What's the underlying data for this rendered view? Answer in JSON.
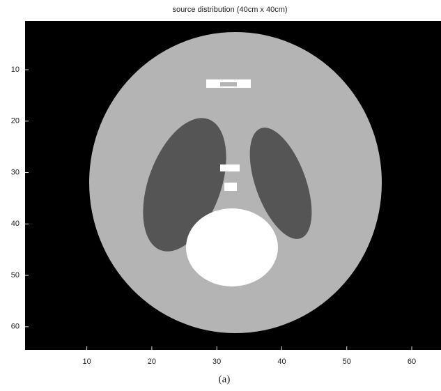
{
  "chart_data": {
    "type": "image",
    "title": "source distribution (40cm x 40cm)",
    "caption": "(a)",
    "xlim": [
      0.5,
      64.5
    ],
    "ylim": [
      0.5,
      64.5
    ],
    "y_reversed": true,
    "xticks": [
      10,
      20,
      30,
      40,
      50,
      60
    ],
    "yticks": [
      10,
      20,
      30,
      40,
      50,
      60
    ]
  }
}
